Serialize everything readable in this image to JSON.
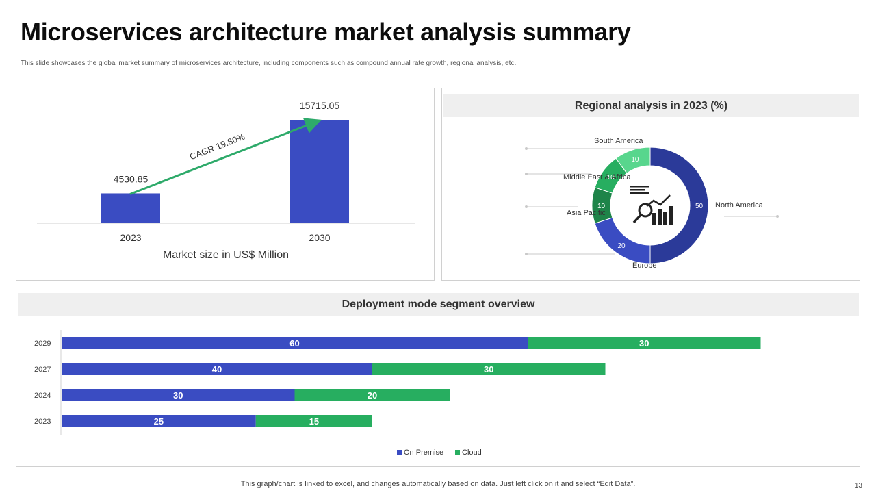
{
  "title": "Microservices architecture market analysis summary",
  "subtitle": "This slide showcases the global market summary of microservices architecture, including components such as compound annual rate growth, regional analysis, etc.",
  "footer": "This graph/chart is linked to excel, and changes automatically based on data. Just left click on it and select “Edit Data”.",
  "page_number": "13",
  "colors": {
    "blue": "#3a4cc2",
    "navy": "#2b3a99",
    "green": "#27ae60",
    "dark_green": "#1e8449",
    "light_green": "#58d68d",
    "arrow": "#2eaa6a"
  },
  "chart_data": [
    {
      "type": "bar",
      "categories": [
        "2023",
        "2030"
      ],
      "values": [
        4530.85,
        15715.05
      ],
      "value_labels": [
        "4530.85",
        "15715.05"
      ],
      "xlabel": "Market size in US$ Million",
      "ylabel": "",
      "ylim": [
        0,
        16000
      ],
      "annotation": "CAGR 19.80%"
    },
    {
      "type": "pie",
      "title": "Regional analysis in 2023 (%)",
      "donut": true,
      "labels": [
        "North America",
        "Europe",
        "Asia Pacific",
        "Middle East & Africa",
        "South America"
      ],
      "values": [
        50,
        20,
        10,
        10,
        10
      ],
      "center_icon": "market-analysis-icon"
    },
    {
      "type": "bar",
      "orientation": "horizontal",
      "stacked": true,
      "title": "Deployment mode segment overview",
      "categories": [
        "2029",
        "2027",
        "2024",
        "2023"
      ],
      "series": [
        {
          "name": "On Premise",
          "values": [
            60,
            40,
            30,
            25
          ]
        },
        {
          "name": "Cloud",
          "values": [
            30,
            30,
            20,
            15
          ]
        }
      ],
      "xlim": [
        0,
        100
      ],
      "legend": "bottom"
    }
  ]
}
